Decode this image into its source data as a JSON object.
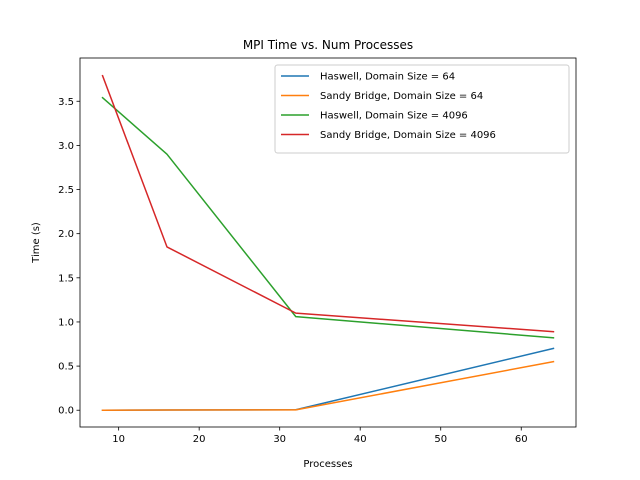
{
  "chart_data": {
    "type": "line",
    "title": "MPI Time vs. Num Processes",
    "xlabel": "Processes",
    "ylabel": "Time (s)",
    "xlim": [
      5.2,
      66.8
    ],
    "ylim": [
      -0.19,
      3.99
    ],
    "x_ticks": [
      10,
      20,
      30,
      40,
      50,
      60
    ],
    "y_ticks": [
      0.0,
      0.5,
      1.0,
      1.5,
      2.0,
      2.5,
      3.0,
      3.5
    ],
    "y_tick_labels": [
      "0.0",
      "0.5",
      "1.0",
      "1.5",
      "2.0",
      "2.5",
      "3.0",
      "3.5"
    ],
    "grid": false,
    "legend_position": "top-right",
    "series": [
      {
        "name": "Haswell, Domain Size = 64",
        "color": "#1f77b4",
        "x": [
          8,
          16,
          32,
          64
        ],
        "y": [
          0.0,
          0.003,
          0.005,
          0.7
        ]
      },
      {
        "name": "Sandy Bridge, Domain Size = 64",
        "color": "#ff7f0e",
        "x": [
          8,
          16,
          32,
          64
        ],
        "y": [
          0.0,
          0.002,
          0.004,
          0.55
        ]
      },
      {
        "name": "Haswell, Domain Size = 4096",
        "color": "#2ca02c",
        "x": [
          8,
          16,
          32,
          64
        ],
        "y": [
          3.54,
          2.9,
          1.06,
          0.82
        ]
      },
      {
        "name": "Sandy Bridge, Domain Size = 4096",
        "color": "#d62728",
        "x": [
          8,
          16,
          32,
          64
        ],
        "y": [
          3.79,
          1.85,
          1.1,
          0.89
        ]
      }
    ]
  }
}
